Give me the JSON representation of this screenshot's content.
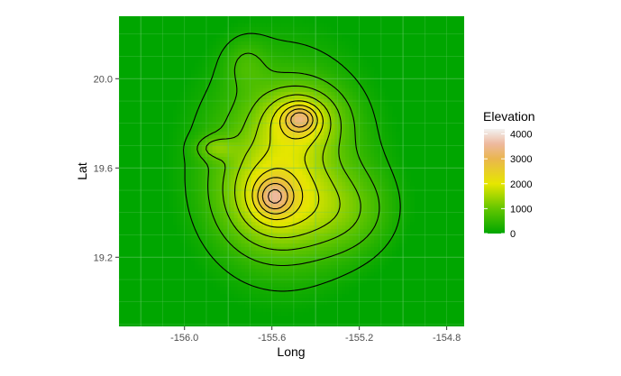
{
  "chart_data": {
    "type": "heatmap",
    "subtype": "filled raster with contour lines",
    "xlabel": "Long",
    "ylabel": "Lat",
    "xlim": [
      -156.3,
      -154.72
    ],
    "ylim": [
      18.89,
      20.28
    ],
    "x_ticks": [
      -156.0,
      -155.6,
      -155.2,
      -154.8
    ],
    "x_tick_labels": [
      "-156.0",
      "-155.6",
      "-155.2",
      "-154.8"
    ],
    "y_ticks": [
      19.2,
      19.6,
      20.0
    ],
    "y_tick_labels": [
      "19.2",
      "19.6",
      "20.0"
    ],
    "grid": true,
    "legend": {
      "title": "Elevation",
      "position": "right",
      "values": [
        0,
        1000,
        2000,
        3000,
        4000
      ],
      "labels": [
        "0",
        "1000",
        "2000",
        "3000",
        "4000"
      ],
      "range": [
        0,
        4200
      ]
    },
    "color_scale": {
      "stops": [
        {
          "value": 0,
          "color": "#00a600"
        },
        {
          "value": 1000,
          "color": "#63c600"
        },
        {
          "value": 2000,
          "color": "#e6e600"
        },
        {
          "value": 3000,
          "color": "#eab64e"
        },
        {
          "value": 3600,
          "color": "#eeb99f"
        },
        {
          "value": 4200,
          "color": "#f2f2f2"
        }
      ]
    },
    "peaks": [
      {
        "name": "",
        "x": -155.59,
        "y": 19.47,
        "elevation": 4150
      },
      {
        "name": "",
        "x": -155.47,
        "y": 19.82,
        "elevation": 4200
      },
      {
        "name": "",
        "x": -155.86,
        "y": 19.69,
        "elevation": 2500
      }
    ],
    "contour_levels": [
      200,
      600,
      1000,
      1400,
      1800,
      2200,
      2600,
      3000,
      3400,
      3800
    ],
    "colors": {
      "panel_background": "#00a600",
      "grid": "#66c866",
      "contour": "#000000"
    }
  }
}
